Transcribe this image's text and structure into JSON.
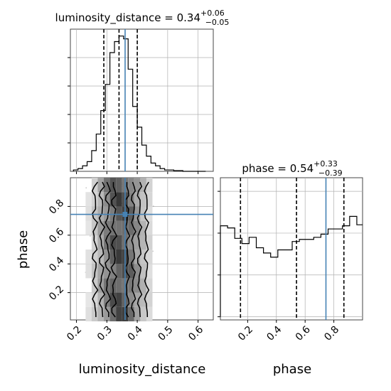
{
  "chart_data": {
    "type": "corner",
    "parameters": [
      "luminosity_distance",
      "phase"
    ],
    "truths": {
      "luminosity_distance": 0.36,
      "phase": 0.745
    },
    "marginals": [
      {
        "parameter": "luminosity_distance",
        "title": {
          "prefix": "luminosity_distance = ",
          "median": "0.34",
          "plus": "+0.06",
          "minus": "−0.05"
        },
        "quantiles": [
          0.29,
          0.34,
          0.4
        ],
        "xlim": [
          0.18,
          0.65
        ],
        "bin_edges": [
          0.19,
          0.205,
          0.22,
          0.235,
          0.25,
          0.265,
          0.28,
          0.295,
          0.31,
          0.325,
          0.34,
          0.355,
          0.37,
          0.385,
          0.4,
          0.415,
          0.43,
          0.445,
          0.46,
          0.475,
          0.49,
          0.505,
          0.52,
          0.535,
          0.55,
          0.565,
          0.58,
          0.595,
          0.61,
          0.625
        ],
        "counts": [
          1,
          2,
          4,
          7,
          15,
          27,
          44,
          63,
          86,
          94,
          98,
          96,
          74,
          47,
          32,
          19,
          11,
          6,
          4,
          2,
          1,
          1,
          0.5,
          0.5,
          0,
          0,
          0,
          0,
          0
        ],
        "xticks": [
          0.2,
          0.3,
          0.4,
          0.5,
          0.6
        ],
        "xtick_labels": [
          "0.2",
          "0.3",
          "0.4",
          "0.5",
          "0.6"
        ],
        "ylim": [
          0,
          103
        ]
      },
      {
        "parameter": "phase",
        "title": {
          "prefix": "phase = ",
          "median": "0.54",
          "plus": "+0.33",
          "minus": "−0.39"
        },
        "quantiles": [
          0.15,
          0.54,
          0.87
        ],
        "xlim": [
          0.01,
          1.0
        ],
        "bin_edges": [
          0.01,
          0.06,
          0.11,
          0.16,
          0.21,
          0.26,
          0.31,
          0.36,
          0.41,
          0.46,
          0.51,
          0.56,
          0.61,
          0.66,
          0.71,
          0.76,
          0.81,
          0.86,
          0.91,
          0.96,
          1.0
        ],
        "counts": [
          87,
          85,
          75,
          70,
          76,
          66,
          61,
          57,
          64,
          64,
          72,
          74,
          74,
          76,
          79,
          84,
          84,
          87,
          96,
          88
        ],
        "xticks": [
          0.2,
          0.4,
          0.6,
          0.8
        ],
        "xtick_labels": [
          "0.2",
          "0.4",
          "0.6",
          "0.8"
        ],
        "ylim": [
          -3,
          133
        ]
      }
    ],
    "joint": {
      "x_parameter": "luminosity_distance",
      "y_parameter": "phase",
      "xlim": [
        0.18,
        0.65
      ],
      "ylim": [
        0.01,
        1.0
      ],
      "xticks": [
        0.2,
        0.3,
        0.4,
        0.5,
        0.6
      ],
      "yticks": [
        0.2,
        0.4,
        0.6,
        0.8
      ],
      "ytick_labels": [
        "0.2",
        "0.4",
        "0.6",
        "0.8"
      ],
      "density_levels": [
        0.118,
        0.393,
        0.675,
        0.865
      ],
      "density_bin_x": [
        0.2,
        0.22,
        0.24,
        0.26,
        0.28,
        0.3,
        0.32,
        0.34,
        0.36,
        0.38,
        0.4,
        0.42,
        0.44,
        0.46,
        0.48
      ],
      "density_bin_y": [
        0.05,
        0.15,
        0.25,
        0.35,
        0.45,
        0.55,
        0.65,
        0.75,
        0.85,
        0.95
      ]
    },
    "xlabels": [
      "luminosity_distance",
      "phase"
    ],
    "ylabels": [
      "phase"
    ],
    "colors": {
      "truth": "#4682b4",
      "histogram": "#000000",
      "grid": "#b0b0b0",
      "scatter": "#9a9a9a"
    }
  }
}
